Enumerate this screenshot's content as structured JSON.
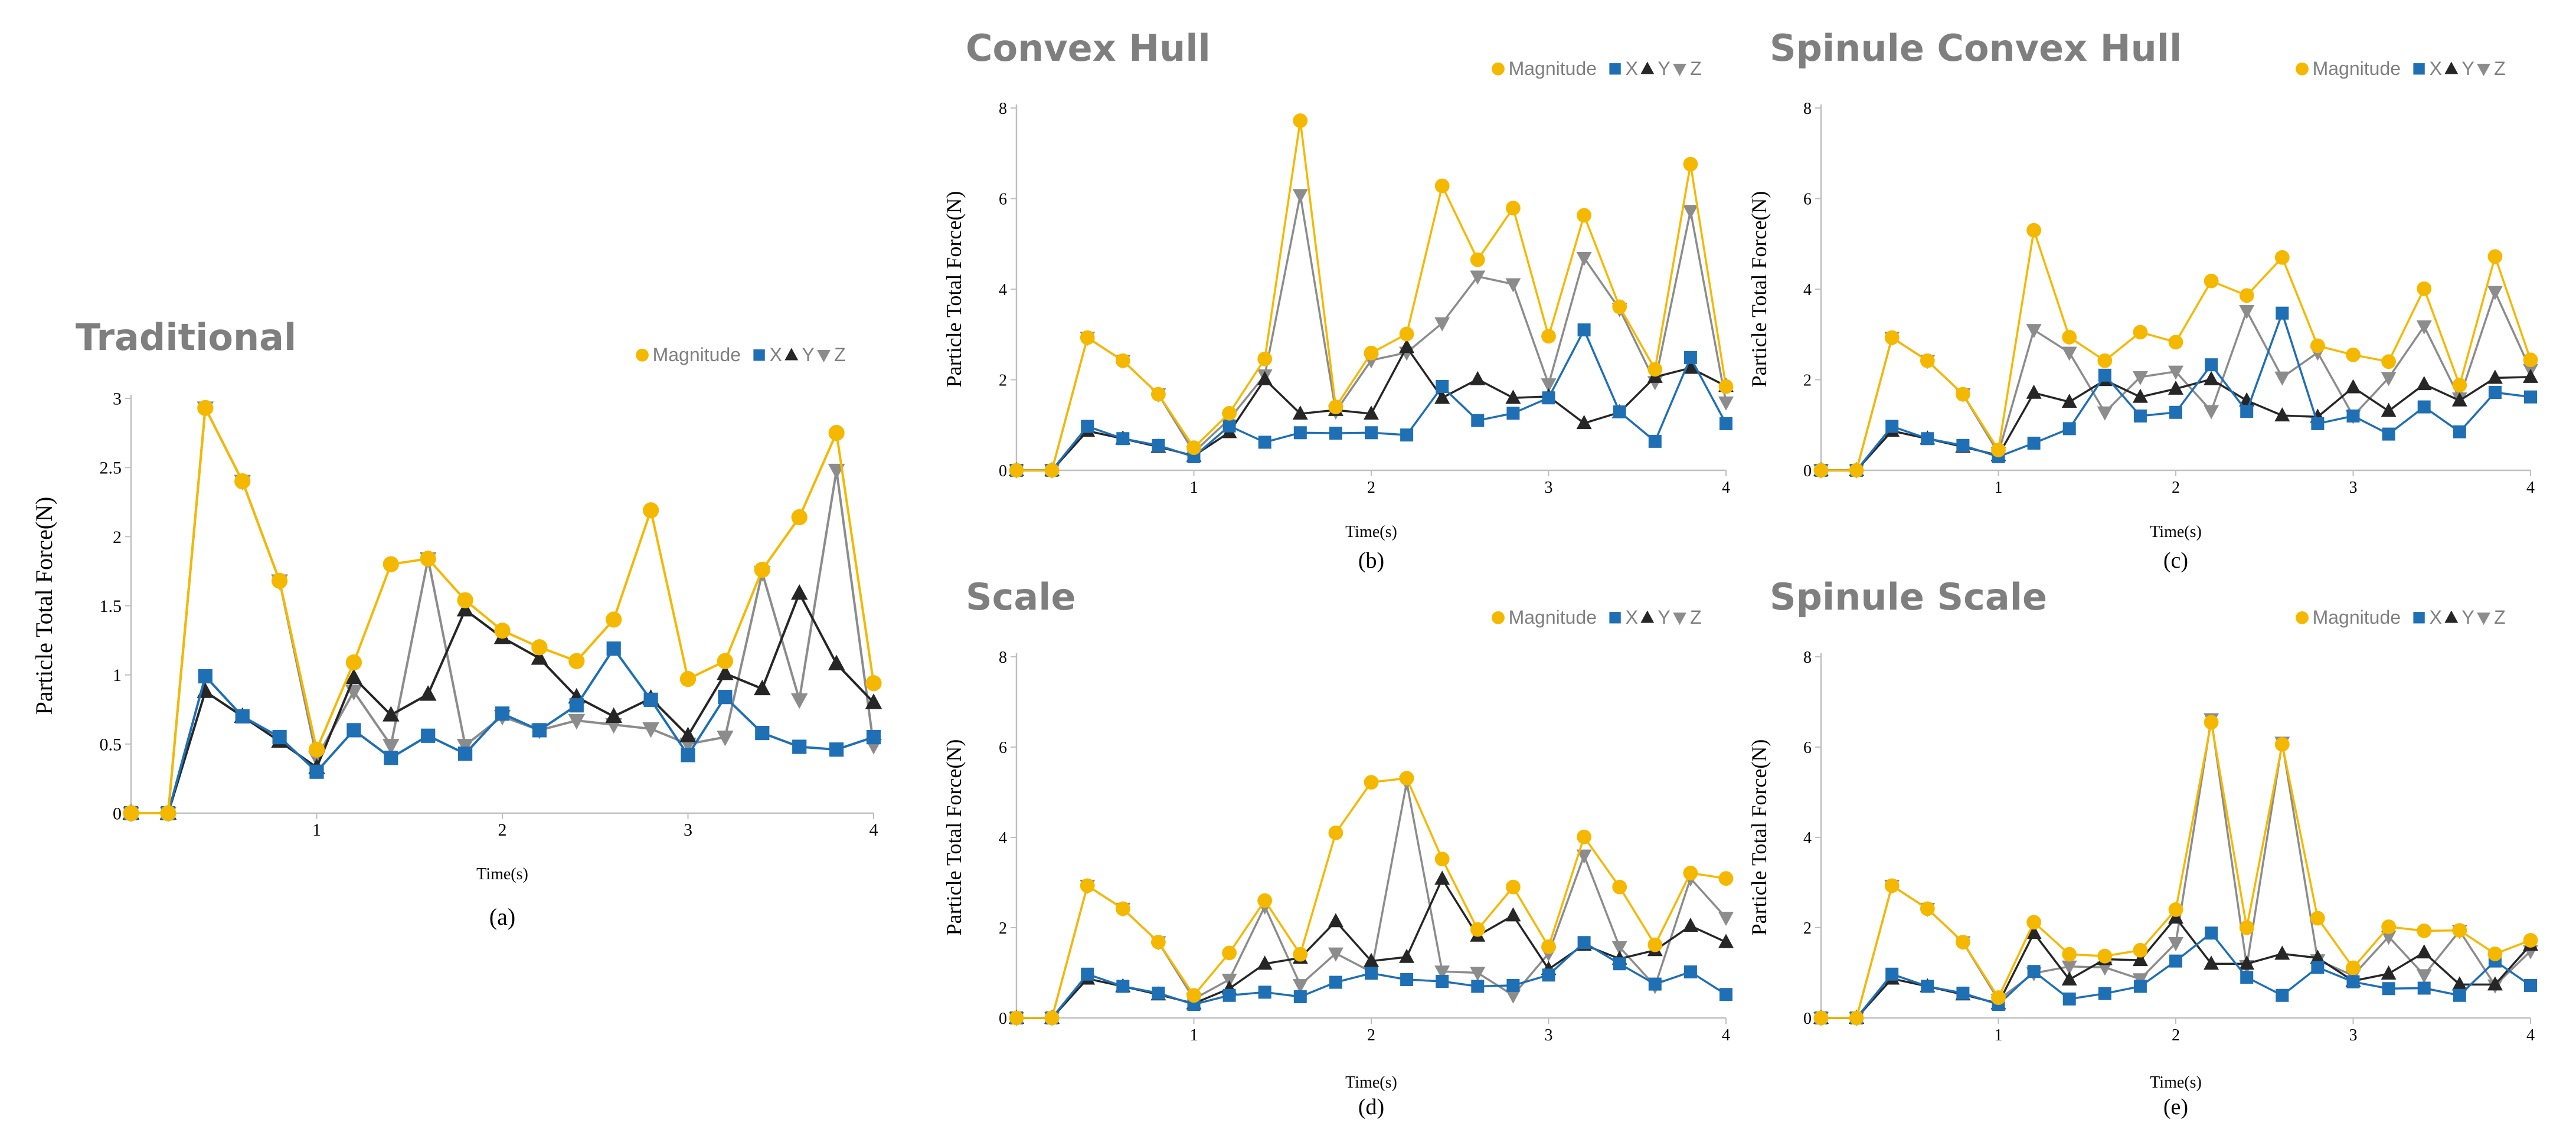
{
  "colors": {
    "magnitude": "#f5b800",
    "x": "#1f6fb4",
    "y": "#262626",
    "z": "#8c8c8c",
    "axis": "#bfbfbf",
    "title": "#7f7f7f"
  },
  "chart_data": [
    {
      "type": "line",
      "panel": "a",
      "title": "Traditional",
      "caption": "(a)",
      "xlabel": "Time(s)",
      "ylabel": "Particle Total Force(N)",
      "xlim": [
        0,
        4
      ],
      "ylim": [
        0,
        3
      ],
      "xticks": [
        {
          "v": 1,
          "label": "1"
        },
        {
          "v": 2,
          "label": "2"
        },
        {
          "v": 3,
          "label": "3"
        },
        {
          "v": 4,
          "label": "4"
        }
      ],
      "yticks": [
        {
          "v": 0,
          "label": "0"
        },
        {
          "v": 0.5,
          "label": "0.5"
        },
        {
          "v": 1,
          "label": "1"
        },
        {
          "v": 1.5,
          "label": "1.5"
        },
        {
          "v": 2,
          "label": "2"
        },
        {
          "v": 2.5,
          "label": "2.5"
        },
        {
          "v": 3,
          "label": "3"
        }
      ],
      "legend": [
        "Magnitude",
        "X",
        "Y",
        "Z"
      ],
      "x": [
        0,
        0.2,
        0.4,
        0.6,
        0.8,
        1.0,
        1.2,
        1.4,
        1.6,
        1.8,
        2.0,
        2.2,
        2.4,
        2.6,
        2.8,
        3.0,
        3.2,
        3.4,
        3.6,
        3.8,
        4.0
      ],
      "series": [
        {
          "name": "Magnitude",
          "values": [
            0,
            0,
            2.93,
            2.4,
            1.68,
            0.46,
            1.09,
            1.8,
            1.84,
            1.54,
            1.32,
            1.2,
            1.1,
            1.4,
            2.19,
            0.97,
            1.1,
            1.76,
            2.14,
            2.75,
            0.94
          ]
        },
        {
          "name": "X",
          "values": [
            0,
            0,
            0.99,
            0.7,
            0.55,
            0.3,
            0.6,
            0.4,
            0.56,
            0.43,
            0.72,
            0.6,
            0.78,
            1.19,
            0.82,
            0.42,
            0.84,
            0.58,
            0.48,
            0.46,
            0.55
          ]
        },
        {
          "name": "Y",
          "values": [
            0,
            0,
            0.88,
            0.7,
            0.52,
            0.33,
            0.98,
            0.71,
            0.86,
            1.47,
            1.27,
            1.12,
            0.84,
            0.7,
            0.83,
            0.56,
            1.01,
            0.9,
            1.59,
            1.08,
            0.8
          ]
        },
        {
          "name": "Z",
          "values": [
            0,
            0,
            2.93,
            2.4,
            1.68,
            0.4,
            0.88,
            0.49,
            1.84,
            0.49,
            0.7,
            0.6,
            0.67,
            0.64,
            0.61,
            0.5,
            0.55,
            1.74,
            0.82,
            2.48,
            0.49
          ]
        }
      ]
    },
    {
      "type": "line",
      "panel": "b",
      "title": "Convex Hull",
      "caption": "(b)",
      "xlabel": "Time(s)",
      "ylabel": "Particle Total Force(N)",
      "xlim": [
        0,
        4
      ],
      "ylim": [
        0,
        8
      ],
      "xticks": [
        {
          "v": 1,
          "label": "1"
        },
        {
          "v": 2,
          "label": "2"
        },
        {
          "v": 3,
          "label": "3"
        },
        {
          "v": 4,
          "label": "4"
        }
      ],
      "yticks": [
        {
          "v": 0,
          "label": "0"
        },
        {
          "v": 2,
          "label": "2"
        },
        {
          "v": 4,
          "label": "4"
        },
        {
          "v": 6,
          "label": "6"
        },
        {
          "v": 8,
          "label": "8"
        }
      ],
      "legend": [
        "Magnitude",
        "X",
        "Y",
        "Z"
      ],
      "x": [
        0,
        0.2,
        0.4,
        0.6,
        0.8,
        1.0,
        1.2,
        1.4,
        1.6,
        1.8,
        2.0,
        2.2,
        2.4,
        2.6,
        2.8,
        3.0,
        3.2,
        3.4,
        3.6,
        3.8,
        4.0
      ],
      "series": [
        {
          "name": "Magnitude",
          "values": [
            0,
            0,
            2.93,
            2.42,
            1.68,
            0.5,
            1.26,
            2.46,
            7.72,
            1.4,
            2.59,
            3.01,
            6.28,
            4.65,
            5.79,
            2.96,
            5.63,
            3.61,
            2.23,
            6.76,
            1.85
          ]
        },
        {
          "name": "X",
          "values": [
            0,
            0,
            0.97,
            0.7,
            0.55,
            0.3,
            0.98,
            0.62,
            0.83,
            0.82,
            0.83,
            0.78,
            1.85,
            1.1,
            1.26,
            1.6,
            3.1,
            1.29,
            0.64,
            2.49,
            1.03
          ]
        },
        {
          "name": "Y",
          "values": [
            0,
            0,
            0.87,
            0.7,
            0.52,
            0.32,
            0.84,
            2.01,
            1.25,
            1.33,
            1.25,
            2.72,
            1.6,
            2.01,
            1.6,
            1.63,
            1.04,
            1.28,
            2.06,
            2.26,
            1.86
          ]
        },
        {
          "name": "Z",
          "values": [
            0,
            0,
            2.93,
            2.42,
            1.68,
            0.4,
            1.13,
            2.1,
            6.08,
            1.3,
            2.43,
            2.6,
            3.25,
            4.28,
            4.11,
            1.9,
            4.69,
            3.56,
            1.95,
            5.73,
            1.5
          ]
        }
      ]
    },
    {
      "type": "line",
      "panel": "c",
      "title": "Spinule Convex Hull",
      "caption": "(c)",
      "xlabel": "Time(s)",
      "ylabel": "Particle Total Force(N)",
      "xlim": [
        0,
        4
      ],
      "ylim": [
        0,
        8
      ],
      "xticks": [
        {
          "v": 1,
          "label": "1"
        },
        {
          "v": 2,
          "label": "2"
        },
        {
          "v": 3,
          "label": "3"
        },
        {
          "v": 4,
          "label": "4"
        }
      ],
      "yticks": [
        {
          "v": 0,
          "label": "0"
        },
        {
          "v": 2,
          "label": "2"
        },
        {
          "v": 4,
          "label": "4"
        },
        {
          "v": 6,
          "label": "6"
        },
        {
          "v": 8,
          "label": "8"
        }
      ],
      "legend": [
        "Magnitude",
        "X",
        "Y",
        "Z"
      ],
      "x": [
        0,
        0.2,
        0.4,
        0.6,
        0.8,
        1.0,
        1.2,
        1.4,
        1.6,
        1.8,
        2.0,
        2.2,
        2.4,
        2.6,
        2.8,
        3.0,
        3.2,
        3.4,
        3.6,
        3.8,
        4.0
      ],
      "series": [
        {
          "name": "Magnitude",
          "values": [
            0,
            0,
            2.93,
            2.42,
            1.68,
            0.45,
            5.3,
            2.94,
            2.42,
            3.05,
            2.83,
            4.18,
            3.86,
            4.7,
            2.75,
            2.55,
            2.4,
            4.01,
            1.88,
            4.72,
            2.44
          ]
        },
        {
          "name": "X",
          "values": [
            0,
            0,
            0.97,
            0.7,
            0.55,
            0.3,
            0.6,
            0.92,
            2.1,
            1.2,
            1.28,
            2.33,
            1.3,
            3.47,
            1.03,
            1.2,
            0.8,
            1.4,
            0.85,
            1.72,
            1.62
          ]
        },
        {
          "name": "Y",
          "values": [
            0,
            0,
            0.87,
            0.7,
            0.52,
            0.33,
            1.71,
            1.51,
            1.99,
            1.62,
            1.8,
            2.01,
            1.54,
            1.21,
            1.18,
            1.83,
            1.31,
            1.9,
            1.54,
            2.04,
            2.06
          ]
        },
        {
          "name": "Z",
          "values": [
            0,
            0,
            2.93,
            2.42,
            1.68,
            0.38,
            3.1,
            2.6,
            1.28,
            2.06,
            2.18,
            1.31,
            3.52,
            2.05,
            2.6,
            1.2,
            2.04,
            3.18,
            1.59,
            3.94,
            2.22
          ]
        }
      ]
    },
    {
      "type": "line",
      "panel": "d",
      "title": "Scale",
      "caption": "(d)",
      "xlabel": "Time(s)",
      "ylabel": "Particle Total Force(N)",
      "xlim": [
        0,
        4
      ],
      "ylim": [
        0,
        8
      ],
      "xticks": [
        {
          "v": 1,
          "label": "1"
        },
        {
          "v": 2,
          "label": "2"
        },
        {
          "v": 3,
          "label": "3"
        },
        {
          "v": 4,
          "label": "4"
        }
      ],
      "yticks": [
        {
          "v": 0,
          "label": "0"
        },
        {
          "v": 2,
          "label": "2"
        },
        {
          "v": 4,
          "label": "4"
        },
        {
          "v": 6,
          "label": "6"
        },
        {
          "v": 8,
          "label": "8"
        }
      ],
      "legend": [
        "Magnitude",
        "X",
        "Y",
        "Z"
      ],
      "x": [
        0,
        0.2,
        0.4,
        0.6,
        0.8,
        1.0,
        1.2,
        1.4,
        1.6,
        1.8,
        2.0,
        2.2,
        2.4,
        2.6,
        2.8,
        3.0,
        3.2,
        3.4,
        3.6,
        3.8,
        4.0
      ],
      "series": [
        {
          "name": "Magnitude",
          "values": [
            0,
            0,
            2.93,
            2.42,
            1.68,
            0.5,
            1.44,
            2.6,
            1.41,
            4.1,
            5.22,
            5.31,
            3.52,
            1.96,
            2.9,
            1.58,
            4.01,
            2.9,
            1.62,
            3.21,
            3.09
          ]
        },
        {
          "name": "X",
          "values": [
            0,
            0,
            0.97,
            0.7,
            0.55,
            0.3,
            0.5,
            0.57,
            0.47,
            0.79,
            0.99,
            0.85,
            0.81,
            0.7,
            0.72,
            0.95,
            1.67,
            1.2,
            0.75,
            1.02,
            0.52
          ]
        },
        {
          "name": "Y",
          "values": [
            0,
            0,
            0.87,
            0.7,
            0.52,
            0.32,
            0.65,
            1.2,
            1.33,
            2.14,
            1.26,
            1.35,
            3.08,
            1.82,
            2.27,
            1.08,
            1.62,
            1.31,
            1.5,
            2.04,
            1.68
          ]
        },
        {
          "name": "Z",
          "values": [
            0,
            0,
            2.93,
            2.42,
            1.68,
            0.42,
            0.85,
            2.47,
            0.73,
            1.43,
            1.02,
            5.22,
            1.03,
            1.0,
            0.5,
            1.43,
            3.6,
            1.57,
            0.71,
            3.09,
            2.22
          ]
        }
      ]
    },
    {
      "type": "line",
      "panel": "e",
      "title": "Spinule Scale",
      "caption": "(e)",
      "xlabel": "Time(s)",
      "ylabel": "Particle Total Force(N)",
      "xlim": [
        0,
        4
      ],
      "ylim": [
        0,
        8
      ],
      "xticks": [
        {
          "v": 1,
          "label": "1"
        },
        {
          "v": 2,
          "label": "2"
        },
        {
          "v": 3,
          "label": "3"
        },
        {
          "v": 4,
          "label": "4"
        }
      ],
      "yticks": [
        {
          "v": 0,
          "label": "0"
        },
        {
          "v": 2,
          "label": "2"
        },
        {
          "v": 4,
          "label": "4"
        },
        {
          "v": 6,
          "label": "6"
        },
        {
          "v": 8,
          "label": "8"
        }
      ],
      "legend": [
        "Magnitude",
        "X",
        "Y",
        "Z"
      ],
      "x": [
        0,
        0.2,
        0.4,
        0.6,
        0.8,
        1.0,
        1.2,
        1.4,
        1.6,
        1.8,
        2.0,
        2.2,
        2.4,
        2.6,
        2.8,
        3.0,
        3.2,
        3.4,
        3.6,
        3.8,
        4.0
      ],
      "series": [
        {
          "name": "Magnitude",
          "values": [
            0,
            0,
            2.93,
            2.42,
            1.68,
            0.45,
            2.12,
            1.41,
            1.37,
            1.5,
            2.4,
            6.55,
            2.0,
            6.06,
            2.21,
            1.11,
            2.02,
            1.93,
            1.94,
            1.42,
            1.72
          ]
        },
        {
          "name": "X",
          "values": [
            0,
            0,
            0.97,
            0.7,
            0.55,
            0.3,
            1.03,
            0.42,
            0.54,
            0.7,
            1.26,
            1.88,
            0.9,
            0.5,
            1.12,
            0.8,
            0.65,
            0.66,
            0.5,
            1.26,
            0.72
          ]
        },
        {
          "name": "Y",
          "values": [
            0,
            0,
            0.87,
            0.7,
            0.52,
            0.32,
            1.88,
            0.85,
            1.3,
            1.28,
            2.22,
            1.2,
            1.2,
            1.42,
            1.33,
            0.82,
            0.98,
            1.45,
            0.74,
            0.74,
            1.62
          ]
        },
        {
          "name": "Z",
          "values": [
            0,
            0,
            2.93,
            2.42,
            1.68,
            0.4,
            0.99,
            1.14,
            1.12,
            0.86,
            1.66,
            6.62,
            1.15,
            6.1,
            1.28,
            0.94,
            1.8,
            0.95,
            1.93,
            0.72,
            1.48
          ]
        }
      ]
    }
  ]
}
